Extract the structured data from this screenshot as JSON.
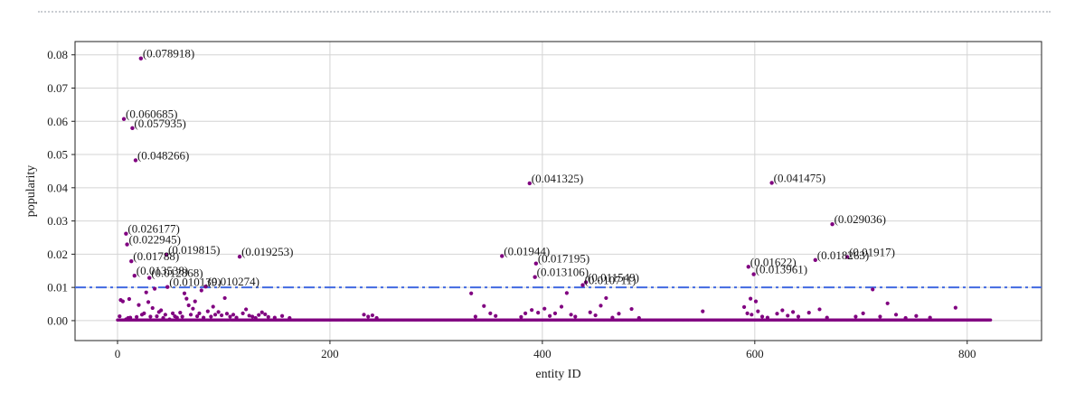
{
  "chart_data": {
    "type": "scatter",
    "title": "",
    "xlabel": "entity ID",
    "ylabel": "popularity",
    "xlim": [
      -40,
      870
    ],
    "ylim": [
      -0.006,
      0.084
    ],
    "xticks": [
      0,
      200,
      400,
      600,
      800
    ],
    "yticks": [
      0.0,
      0.01,
      0.02,
      0.03,
      0.04,
      0.05,
      0.06,
      0.07,
      0.08
    ],
    "ytick_labels": [
      "0.00",
      "0.01",
      "0.02",
      "0.03",
      "0.04",
      "0.05",
      "0.06",
      "0.07",
      "0.08"
    ],
    "grid": true,
    "marker_color": "#800080",
    "threshold": {
      "y": 0.01,
      "color": "#4169e1",
      "style": "dash-dot"
    },
    "labeled_points": [
      {
        "x": 22,
        "y": 0.078918,
        "label": "(0.078918)"
      },
      {
        "x": 6,
        "y": 0.060685,
        "label": "(0.060685)"
      },
      {
        "x": 14,
        "y": 0.057935,
        "label": "(0.057935)"
      },
      {
        "x": 17,
        "y": 0.048266,
        "label": "(0.048266)"
      },
      {
        "x": 8,
        "y": 0.026177,
        "label": "(0.026177)"
      },
      {
        "x": 9,
        "y": 0.022945,
        "label": "(0.022945)"
      },
      {
        "x": 46,
        "y": 0.019815,
        "label": "(0.019815)"
      },
      {
        "x": 13,
        "y": 0.01788,
        "label": "(0.01788)"
      },
      {
        "x": 115,
        "y": 0.019253,
        "label": "(0.019253)"
      },
      {
        "x": 16,
        "y": 0.013538,
        "label": "(0.013538)"
      },
      {
        "x": 30,
        "y": 0.012868,
        "label": "(0.012868)"
      },
      {
        "x": 47,
        "y": 0.010139,
        "label": "(0.010139)"
      },
      {
        "x": 83,
        "y": 0.010274,
        "label": "(0.010274)"
      },
      {
        "x": 362,
        "y": 0.01944,
        "label": "(0.01944)"
      },
      {
        "x": 388,
        "y": 0.041325,
        "label": "(0.041325)"
      },
      {
        "x": 394,
        "y": 0.017195,
        "label": "(0.017195)"
      },
      {
        "x": 393,
        "y": 0.013106,
        "label": "(0.013106)"
      },
      {
        "x": 441,
        "y": 0.011549,
        "label": "(0.011549)"
      },
      {
        "x": 438,
        "y": 0.010711,
        "label": "(0.010711)"
      },
      {
        "x": 594,
        "y": 0.01622,
        "label": "(0.01622)"
      },
      {
        "x": 599,
        "y": 0.013961,
        "label": "(0.013961)"
      },
      {
        "x": 616,
        "y": 0.041475,
        "label": "(0.041475)"
      },
      {
        "x": 673,
        "y": 0.029036,
        "label": "(0.029036)"
      },
      {
        "x": 657,
        "y": 0.018263,
        "label": "(0.018263)"
      },
      {
        "x": 687,
        "y": 0.01917,
        "label": "(0.01917)"
      }
    ],
    "points": [
      {
        "x": 2,
        "y": 0.0013
      },
      {
        "x": 3,
        "y": 0.0062
      },
      {
        "x": 5,
        "y": 0.0058
      },
      {
        "x": 8,
        "y": 0.0004
      },
      {
        "x": 10,
        "y": 0.0008
      },
      {
        "x": 11,
        "y": 0.0065
      },
      {
        "x": 12,
        "y": 0.0009
      },
      {
        "x": 18,
        "y": 0.0011
      },
      {
        "x": 20,
        "y": 0.0047
      },
      {
        "x": 23,
        "y": 0.0018
      },
      {
        "x": 25,
        "y": 0.0022
      },
      {
        "x": 27,
        "y": 0.0085
      },
      {
        "x": 29,
        "y": 0.0056
      },
      {
        "x": 31,
        "y": 0.0012
      },
      {
        "x": 33,
        "y": 0.0038
      },
      {
        "x": 35,
        "y": 0.0096
      },
      {
        "x": 37,
        "y": 0.0013
      },
      {
        "x": 39,
        "y": 0.0026
      },
      {
        "x": 41,
        "y": 0.0031
      },
      {
        "x": 43,
        "y": 0.0008
      },
      {
        "x": 45,
        "y": 0.0018
      },
      {
        "x": 49,
        "y": 0.0004
      },
      {
        "x": 52,
        "y": 0.0022
      },
      {
        "x": 54,
        "y": 0.0013
      },
      {
        "x": 56,
        "y": 0.0009
      },
      {
        "x": 59,
        "y": 0.0024
      },
      {
        "x": 61,
        "y": 0.0012
      },
      {
        "x": 63,
        "y": 0.0082
      },
      {
        "x": 65,
        "y": 0.0066
      },
      {
        "x": 67,
        "y": 0.0046
      },
      {
        "x": 69,
        "y": 0.0018
      },
      {
        "x": 71,
        "y": 0.0036
      },
      {
        "x": 73,
        "y": 0.0058
      },
      {
        "x": 75,
        "y": 0.0013
      },
      {
        "x": 77,
        "y": 0.0022
      },
      {
        "x": 79,
        "y": 0.0091
      },
      {
        "x": 81,
        "y": 0.0009
      },
      {
        "x": 85,
        "y": 0.0028
      },
      {
        "x": 88,
        "y": 0.0012
      },
      {
        "x": 90,
        "y": 0.0042
      },
      {
        "x": 92,
        "y": 0.0018
      },
      {
        "x": 95,
        "y": 0.0026
      },
      {
        "x": 98,
        "y": 0.0016
      },
      {
        "x": 101,
        "y": 0.0068
      },
      {
        "x": 103,
        "y": 0.0021
      },
      {
        "x": 106,
        "y": 0.0012
      },
      {
        "x": 109,
        "y": 0.0018
      },
      {
        "x": 112,
        "y": 0.0009
      },
      {
        "x": 118,
        "y": 0.0022
      },
      {
        "x": 121,
        "y": 0.0034
      },
      {
        "x": 124,
        "y": 0.0015
      },
      {
        "x": 127,
        "y": 0.0012
      },
      {
        "x": 130,
        "y": 0.0008
      },
      {
        "x": 133,
        "y": 0.0017
      },
      {
        "x": 136,
        "y": 0.0025
      },
      {
        "x": 139,
        "y": 0.0019
      },
      {
        "x": 142,
        "y": 0.0011
      },
      {
        "x": 148,
        "y": 0.0009
      },
      {
        "x": 155,
        "y": 0.0014
      },
      {
        "x": 162,
        "y": 0.0008
      },
      {
        "x": 232,
        "y": 0.0018
      },
      {
        "x": 236,
        "y": 0.0012
      },
      {
        "x": 240,
        "y": 0.0016
      },
      {
        "x": 244,
        "y": 0.0008
      },
      {
        "x": 333,
        "y": 0.0082
      },
      {
        "x": 337,
        "y": 0.0012
      },
      {
        "x": 345,
        "y": 0.0044
      },
      {
        "x": 351,
        "y": 0.0022
      },
      {
        "x": 356,
        "y": 0.0014
      },
      {
        "x": 380,
        "y": 0.0011
      },
      {
        "x": 384,
        "y": 0.0022
      },
      {
        "x": 390,
        "y": 0.0032
      },
      {
        "x": 396,
        "y": 0.0024
      },
      {
        "x": 402,
        "y": 0.0036
      },
      {
        "x": 407,
        "y": 0.0014
      },
      {
        "x": 412,
        "y": 0.0022
      },
      {
        "x": 418,
        "y": 0.0042
      },
      {
        "x": 423,
        "y": 0.0083
      },
      {
        "x": 427,
        "y": 0.0018
      },
      {
        "x": 431,
        "y": 0.0012
      },
      {
        "x": 445,
        "y": 0.0025
      },
      {
        "x": 450,
        "y": 0.0016
      },
      {
        "x": 455,
        "y": 0.0045
      },
      {
        "x": 460,
        "y": 0.0068
      },
      {
        "x": 466,
        "y": 0.0009
      },
      {
        "x": 472,
        "y": 0.0021
      },
      {
        "x": 484,
        "y": 0.0035
      },
      {
        "x": 491,
        "y": 0.0008
      },
      {
        "x": 551,
        "y": 0.0028
      },
      {
        "x": 590,
        "y": 0.0041
      },
      {
        "x": 593,
        "y": 0.0022
      },
      {
        "x": 596,
        "y": 0.0066
      },
      {
        "x": 597,
        "y": 0.0018
      },
      {
        "x": 601,
        "y": 0.0058
      },
      {
        "x": 603,
        "y": 0.0028
      },
      {
        "x": 607,
        "y": 0.0012
      },
      {
        "x": 612,
        "y": 0.0009
      },
      {
        "x": 621,
        "y": 0.0021
      },
      {
        "x": 626,
        "y": 0.0031
      },
      {
        "x": 631,
        "y": 0.0015
      },
      {
        "x": 636,
        "y": 0.0026
      },
      {
        "x": 641,
        "y": 0.0012
      },
      {
        "x": 651,
        "y": 0.0024
      },
      {
        "x": 661,
        "y": 0.0034
      },
      {
        "x": 668,
        "y": 0.0009
      },
      {
        "x": 695,
        "y": 0.0012
      },
      {
        "x": 702,
        "y": 0.0022
      },
      {
        "x": 711,
        "y": 0.0094
      },
      {
        "x": 718,
        "y": 0.0012
      },
      {
        "x": 725,
        "y": 0.0052
      },
      {
        "x": 733,
        "y": 0.0018
      },
      {
        "x": 742,
        "y": 0.0008
      },
      {
        "x": 752,
        "y": 0.0014
      },
      {
        "x": 765,
        "y": 0.0009
      },
      {
        "x": 789,
        "y": 0.0039
      }
    ],
    "baseline": {
      "y": 0.0002,
      "x_start": 0,
      "x_end": 822
    }
  }
}
